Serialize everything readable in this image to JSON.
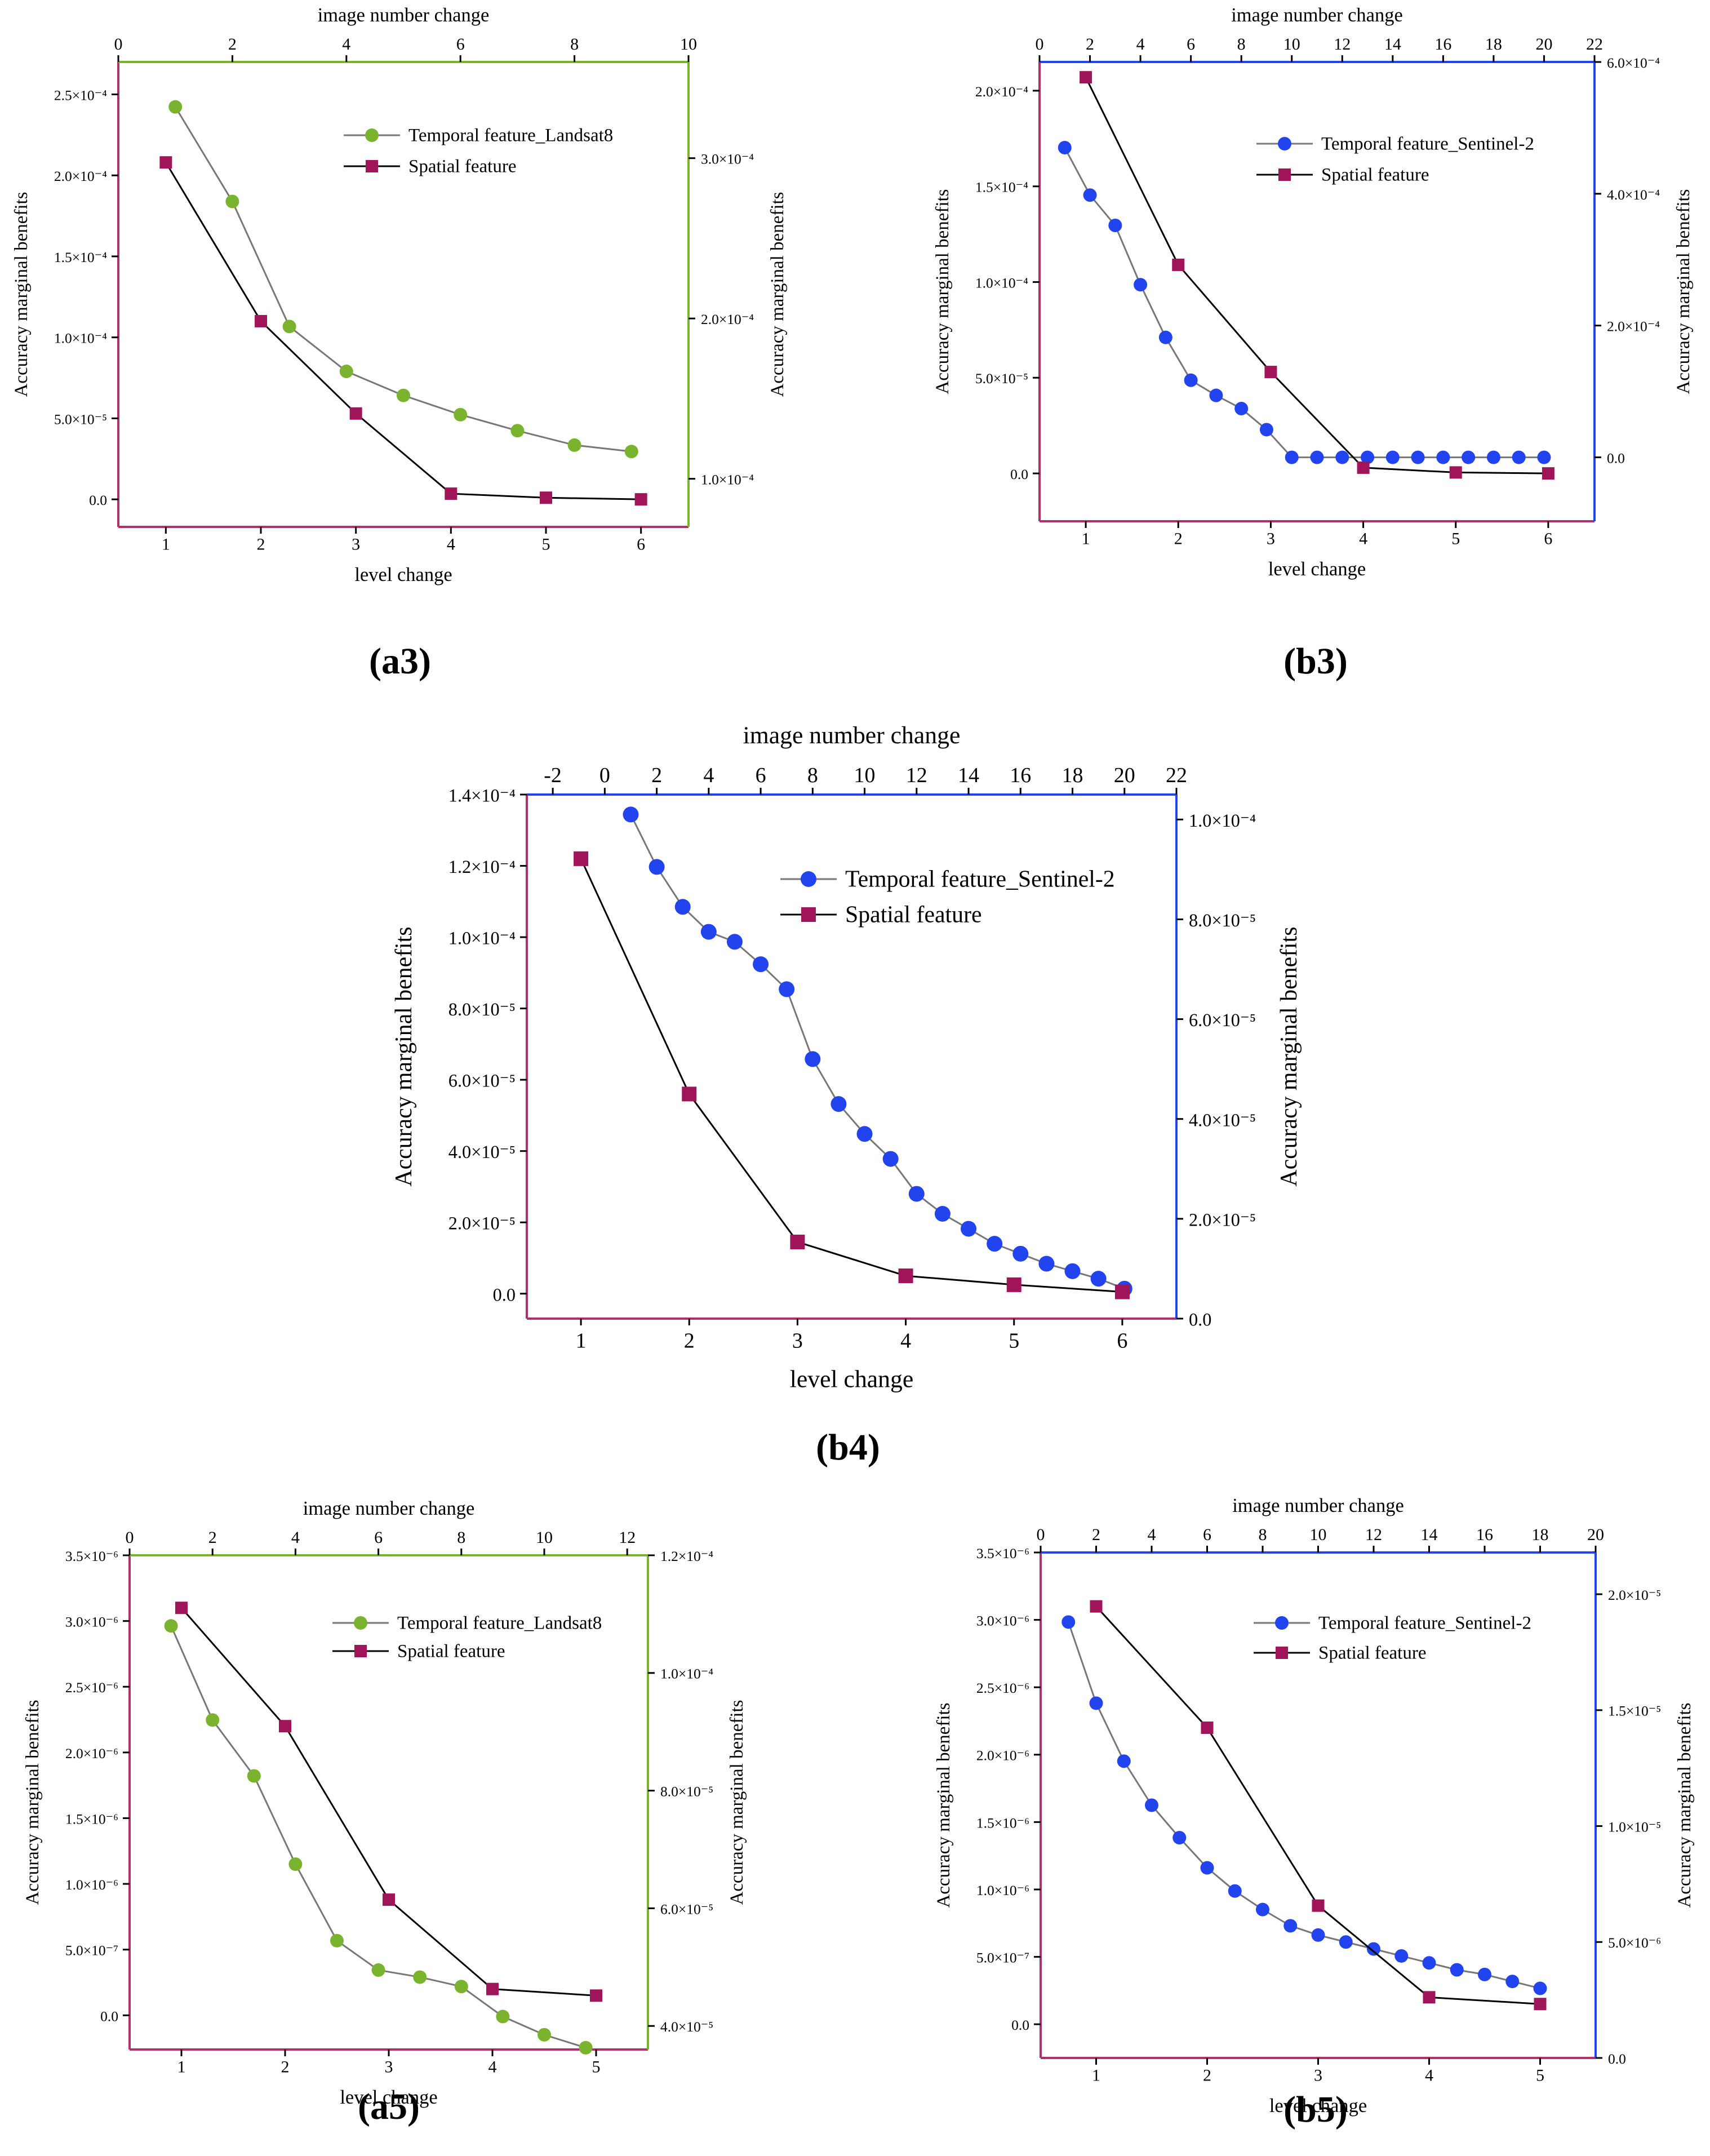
{
  "charts": [
    {
      "id": "a3",
      "panel_label": "(a3)",
      "x_axis_title": "level change",
      "top_axis_title": "image number change",
      "left_axis_title": "Accuracy marginal benefits",
      "right_axis_title": "Accuracy marginal benefits",
      "x_ticks": [
        "1",
        "2",
        "3",
        "4",
        "5",
        "6"
      ],
      "top_ticks": [
        "0",
        "2",
        "4",
        "6",
        "8",
        "10"
      ],
      "left_ticks": [
        "0.0",
        "5.0×10⁻⁵",
        "1.0×10⁻⁴",
        "1.5×10⁻⁴",
        "2.0×10⁻⁴",
        "2.5×10⁻⁴"
      ],
      "right_ticks": [
        "1.0×10⁻⁴",
        "2.0×10⁻⁴",
        "3.0×10⁻⁴"
      ],
      "legend": [
        "Temporal feature_Landsat8",
        "Spatial feature"
      ]
    },
    {
      "id": "b3",
      "panel_label": "(b3)",
      "x_axis_title": "level change",
      "top_axis_title": "image number change",
      "left_axis_title": "Accuracy marginal benefits",
      "right_axis_title": "Accuracy marginal benefits",
      "x_ticks": [
        "1",
        "2",
        "3",
        "4",
        "5",
        "6"
      ],
      "top_ticks": [
        "0",
        "2",
        "4",
        "6",
        "8",
        "10",
        "12",
        "14",
        "16",
        "18",
        "20",
        "22"
      ],
      "left_ticks": [
        "0.0",
        "5.0×10⁻⁵",
        "1.0×10⁻⁴",
        "1.5×10⁻⁴",
        "2.0×10⁻⁴"
      ],
      "right_ticks": [
        "0.0",
        "2.0×10⁻⁴",
        "4.0×10⁻⁴",
        "6.0×10⁻⁴"
      ],
      "legend": [
        "Temporal feature_Sentinel-2",
        "Spatial feature"
      ]
    },
    {
      "id": "b4",
      "panel_label": "(b4)",
      "x_axis_title": "level change",
      "top_axis_title": "image number change",
      "left_axis_title": "Accuracy marginal benefits",
      "right_axis_title": "Accuracy marginal benefits",
      "x_ticks": [
        "1",
        "2",
        "3",
        "4",
        "5",
        "6"
      ],
      "top_ticks": [
        "-2",
        "0",
        "2",
        "4",
        "6",
        "8",
        "10",
        "12",
        "14",
        "16",
        "18",
        "20",
        "22"
      ],
      "left_ticks": [
        "0.0",
        "2.0×10⁻⁵",
        "4.0×10⁻⁵",
        "6.0×10⁻⁵",
        "8.0×10⁻⁵",
        "1.0×10⁻⁴",
        "1.2×10⁻⁴",
        "1.4×10⁻⁴"
      ],
      "right_ticks": [
        "0.0",
        "2.0×10⁻⁵",
        "4.0×10⁻⁵",
        "6.0×10⁻⁵",
        "8.0×10⁻⁵",
        "1.0×10⁻⁴"
      ],
      "legend": [
        "Temporal feature_Sentinel-2",
        "Spatial feature"
      ]
    },
    {
      "id": "a5",
      "panel_label": "(a5)",
      "x_axis_title": "level change",
      "top_axis_title": "image number change",
      "left_axis_title": "Accuracy marginal benefits",
      "right_axis_title": "Accuracy marginal benefits",
      "x_ticks": [
        "1",
        "2",
        "3",
        "4",
        "5"
      ],
      "top_ticks": [
        "0",
        "2",
        "4",
        "6",
        "8",
        "10",
        "12"
      ],
      "left_ticks": [
        "0.0",
        "5.0×10⁻⁷",
        "1.0×10⁻⁶",
        "1.5×10⁻⁶",
        "2.0×10⁻⁶",
        "2.5×10⁻⁶",
        "3.0×10⁻⁶",
        "3.5×10⁻⁶"
      ],
      "right_ticks": [
        "4.0×10⁻⁵",
        "6.0×10⁻⁵",
        "8.0×10⁻⁵",
        "1.0×10⁻⁴",
        "1.2×10⁻⁴"
      ],
      "legend": [
        "Temporal feature_Landsat8",
        "Spatial feature"
      ]
    },
    {
      "id": "b5",
      "panel_label": "(b5)",
      "x_axis_title": "level change",
      "top_axis_title": "image number change",
      "left_axis_title": "Accuracy marginal benefits",
      "right_axis_title": "Accuracy marginal benefits",
      "x_ticks": [
        "1",
        "2",
        "3",
        "4",
        "5"
      ],
      "top_ticks": [
        "0",
        "2",
        "4",
        "6",
        "8",
        "10",
        "12",
        "14",
        "16",
        "18",
        "20"
      ],
      "left_ticks": [
        "0.0",
        "5.0×10⁻⁷",
        "1.0×10⁻⁶",
        "1.5×10⁻⁶",
        "2.0×10⁻⁶",
        "2.5×10⁻⁶",
        "3.0×10⁻⁶",
        "3.5×10⁻⁶"
      ],
      "right_ticks": [
        "0.0",
        "5.0×10⁻⁶",
        "1.0×10⁻⁵",
        "1.5×10⁻⁵",
        "2.0×10⁻⁵"
      ],
      "legend": [
        "Temporal feature_Sentinel-2",
        "Spatial feature"
      ]
    }
  ],
  "chart_data": [
    {
      "id": "a3",
      "type": "line",
      "title": "(a3)",
      "xlabel": "level change",
      "x2label": "image number change",
      "ylabel": "Accuracy marginal benefits",
      "y2label": "Accuracy marginal benefits",
      "xlim": [
        0.5,
        6.5
      ],
      "x2lim": [
        0,
        10
      ],
      "ylim": [
        -1.7e-05,
        0.00027
      ],
      "y2lim": [
        7e-05,
        0.00036
      ],
      "temporal_color": "#7ab32e",
      "right_axis_color": "#7ab32e",
      "left_axis_color": "#b0306a",
      "spatial_color": "#a0145a",
      "series": [
        {
          "name": "Temporal feature_Landsat8",
          "axis": "top-right",
          "x": [
            1,
            2,
            3,
            4,
            5,
            6,
            7,
            8,
            9
          ],
          "y": [
            0.000332,
            0.000273,
            0.000195,
            0.000167,
            0.000152,
            0.00014,
            0.00013,
            0.000121,
            0.000117
          ]
        },
        {
          "name": "Spatial feature",
          "axis": "bottom-left",
          "x": [
            1,
            2,
            3,
            4,
            5,
            6
          ],
          "y": [
            0.000208,
            0.00011,
            5.3e-05,
            3.5e-06,
            1e-06,
            0.0
          ]
        }
      ]
    },
    {
      "id": "b3",
      "type": "line",
      "title": "(b3)",
      "xlabel": "level change",
      "x2label": "image number change",
      "ylabel": "Accuracy marginal benefits",
      "y2label": "Accuracy marginal benefits",
      "xlim": [
        0.5,
        6.5
      ],
      "x2lim": [
        0,
        22
      ],
      "ylim": [
        -2.5e-05,
        0.000215
      ],
      "y2lim": [
        -9.7e-05,
        0.0006
      ],
      "temporal_color": "#2244ee",
      "right_axis_color": "#2244ee",
      "left_axis_color": "#b0306a",
      "spatial_color": "#a0145a",
      "series": [
        {
          "name": "Temporal feature_Sentinel-2",
          "axis": "top-right",
          "x": [
            1,
            2,
            3,
            4,
            5,
            6,
            7,
            8,
            9,
            10,
            11,
            12,
            13,
            14,
            15,
            16,
            17,
            18,
            19,
            20
          ],
          "y": [
            0.00047,
            0.000398,
            0.000352,
            0.000262,
            0.000182,
            0.000117,
            9.4e-05,
            7.4e-05,
            4.2e-05,
            0.0,
            0.0,
            0.0,
            0.0,
            0.0,
            0.0,
            0.0,
            0.0,
            0.0,
            0.0,
            0.0
          ]
        },
        {
          "name": "Spatial feature",
          "axis": "bottom-left",
          "x": [
            1,
            2,
            3,
            4,
            5,
            6
          ],
          "y": [
            0.000207,
            0.000109,
            5.3e-05,
            3e-06,
            5e-07,
            0.0
          ]
        }
      ]
    },
    {
      "id": "b4",
      "type": "line",
      "title": "(b4)",
      "xlabel": "level change",
      "x2label": "image number change",
      "ylabel": "Accuracy marginal benefits",
      "y2label": "Accuracy marginal benefits",
      "xlim": [
        0.5,
        6.5
      ],
      "x2lim": [
        -3,
        22
      ],
      "ylim": [
        -7e-06,
        0.00014
      ],
      "y2lim": [
        0.0,
        0.000105
      ],
      "temporal_color": "#2244ee",
      "right_axis_color": "#2244ee",
      "left_axis_color": "#b0306a",
      "spatial_color": "#a0145a",
      "series": [
        {
          "name": "Temporal feature_Sentinel-2",
          "axis": "top-right",
          "x": [
            1,
            2,
            3,
            4,
            5,
            6,
            7,
            8,
            9,
            10,
            11,
            12,
            13,
            14,
            15,
            16,
            17,
            18,
            19,
            20
          ],
          "y": [
            0.000101,
            9.05e-05,
            8.25e-05,
            7.75e-05,
            7.55e-05,
            7.1e-05,
            6.6e-05,
            5.2e-05,
            4.3e-05,
            3.7e-05,
            3.2e-05,
            2.5e-05,
            2.1e-05,
            1.8e-05,
            1.5e-05,
            1.3e-05,
            1.1e-05,
            9.5e-06,
            8e-06,
            6e-06
          ]
        },
        {
          "name": "Spatial feature",
          "axis": "bottom-left",
          "x": [
            1,
            2,
            3,
            4,
            5,
            6
          ],
          "y": [
            0.000122,
            5.6e-05,
            1.45e-05,
            5e-06,
            2.5e-06,
            5e-07
          ]
        }
      ]
    },
    {
      "id": "a5",
      "type": "line",
      "title": "(a5)",
      "xlabel": "level change",
      "x2label": "image number change",
      "ylabel": "Accuracy marginal benefits",
      "y2label": "Accuracy marginal benefits",
      "xlim": [
        0.5,
        5.5
      ],
      "x2lim": [
        0,
        12.5
      ],
      "ylim": [
        -2.6e-07,
        3.5e-06
      ],
      "y2lim": [
        3.6e-05,
        0.00012
      ],
      "temporal_color": "#7ab32e",
      "right_axis_color": "#7ab32e",
      "left_axis_color": "#b0306a",
      "spatial_color": "#a0145a",
      "series": [
        {
          "name": "Temporal feature_Landsat8",
          "axis": "top-right",
          "x": [
            1,
            2,
            3,
            4,
            5,
            6,
            7,
            8,
            9,
            10,
            11
          ],
          "y": [
            0.000108,
            9.2e-05,
            8.25e-05,
            6.75e-05,
            5.45e-05,
            4.95e-05,
            4.83e-05,
            4.67e-05,
            4.16e-05,
            3.85e-05,
            3.63e-05
          ]
        },
        {
          "name": "Spatial feature",
          "axis": "bottom-left",
          "x": [
            1,
            2,
            3,
            4,
            5
          ],
          "y": [
            3.1e-06,
            2.2e-06,
            8.8e-07,
            2e-07,
            1.5e-07
          ]
        }
      ]
    },
    {
      "id": "b5",
      "type": "line",
      "title": "(b5)",
      "xlabel": "level change",
      "x2label": "image number change",
      "ylabel": "Accuracy marginal benefits",
      "y2label": "Accuracy marginal benefits",
      "xlim": [
        0.5,
        5.5
      ],
      "x2lim": [
        0,
        20
      ],
      "ylim": [
        -2.5e-07,
        3.5e-06
      ],
      "y2lim": [
        0.0,
        2.18e-05
      ],
      "temporal_color": "#2244ee",
      "right_axis_color": "#2244ee",
      "left_axis_color": "#b0306a",
      "spatial_color": "#a0145a",
      "series": [
        {
          "name": "Temporal feature_Sentinel-2",
          "axis": "top-right",
          "x": [
            1,
            2,
            3,
            4,
            5,
            6,
            7,
            8,
            9,
            10,
            11,
            12,
            13,
            14,
            15,
            16,
            17,
            18
          ],
          "y": [
            1.88e-05,
            1.53e-05,
            1.28e-05,
            1.09e-05,
            9.5e-06,
            8.2e-06,
            7.2e-06,
            6.4e-06,
            5.7e-06,
            5.3e-06,
            5e-06,
            4.7e-06,
            4.4e-06,
            4.1e-06,
            3.8e-06,
            3.6e-06,
            3.3e-06,
            3e-06
          ]
        },
        {
          "name": "Spatial feature",
          "axis": "bottom-left",
          "x": [
            1,
            2,
            3,
            4,
            5
          ],
          "y": [
            3.1e-06,
            2.2e-06,
            8.8e-07,
            2e-07,
            1.5e-07
          ]
        }
      ]
    }
  ]
}
